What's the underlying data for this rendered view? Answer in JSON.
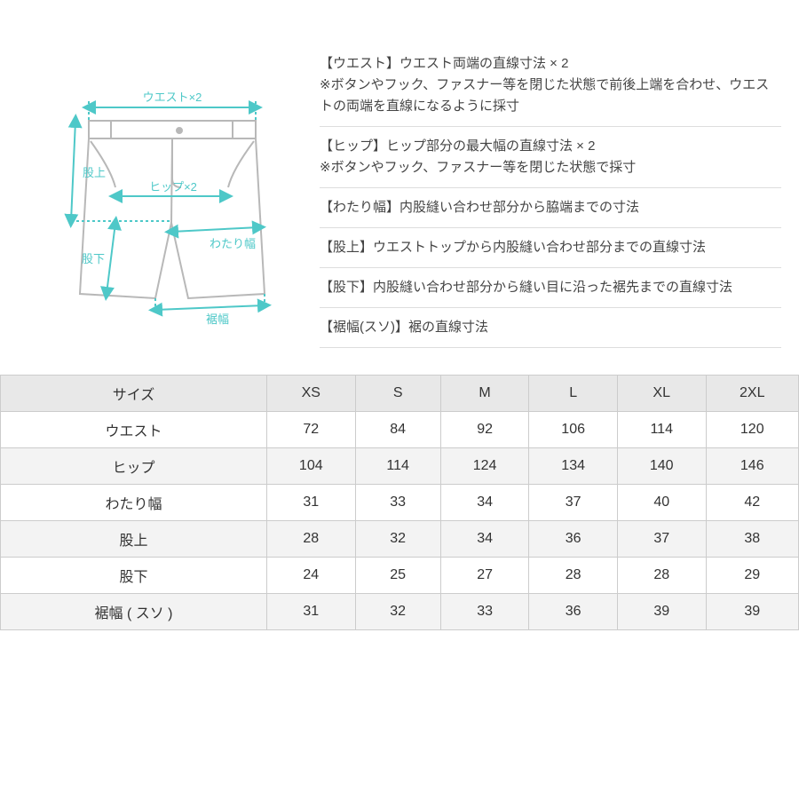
{
  "diagram": {
    "outline_color": "#b8b8b8",
    "arrow_color": "#4ec8c8",
    "label_color": "#4ec8c8",
    "labels": {
      "waist": "ウエスト×2",
      "hip": "ヒップ×2",
      "rise": "股上",
      "inseam": "股下",
      "thigh": "わたり幅",
      "hem": "裾幅"
    }
  },
  "definitions": [
    {
      "title": "【ウエスト】",
      "body": "ウエスト両端の直線寸法 × 2\n※ボタンやフック、ファスナー等を閉じた状態で前後上端を合わせ、ウエストの両端を直線になるように採寸"
    },
    {
      "title": "【ヒップ】",
      "body": "ヒップ部分の最大幅の直線寸法 × 2\n※ボタンやフック、ファスナー等を閉じた状態で採寸"
    },
    {
      "title": "【わたり幅】",
      "body": "内股縫い合わせ部分から脇端までの寸法"
    },
    {
      "title": "【股上】",
      "body": "ウエストトップから内股縫い合わせ部分までの直線寸法"
    },
    {
      "title": "【股下】",
      "body": "内股縫い合わせ部分から縫い目に沿った裾先までの直線寸法"
    },
    {
      "title": "【裾幅(スソ)】",
      "body": "裾の直線寸法"
    }
  ],
  "table": {
    "type": "table",
    "header_bg": "#e8e8e8",
    "row_alt_bg": "#f3f3f3",
    "border_color": "#cccccc",
    "text_color": "#333333",
    "fontsize": 16,
    "columns": [
      "サイズ",
      "XS",
      "S",
      "M",
      "L",
      "XL",
      "2XL"
    ],
    "rows": [
      [
        "ウエスト",
        72,
        84,
        92,
        106,
        114,
        120
      ],
      [
        "ヒップ",
        104,
        114,
        124,
        134,
        140,
        146
      ],
      [
        "わたり幅",
        31,
        33,
        34,
        37,
        40,
        42
      ],
      [
        "股上",
        28,
        32,
        34,
        36,
        37,
        38
      ],
      [
        "股下",
        24,
        25,
        27,
        28,
        28,
        29
      ],
      [
        "裾幅 ( スソ )",
        31,
        32,
        33,
        36,
        39,
        39
      ]
    ]
  }
}
